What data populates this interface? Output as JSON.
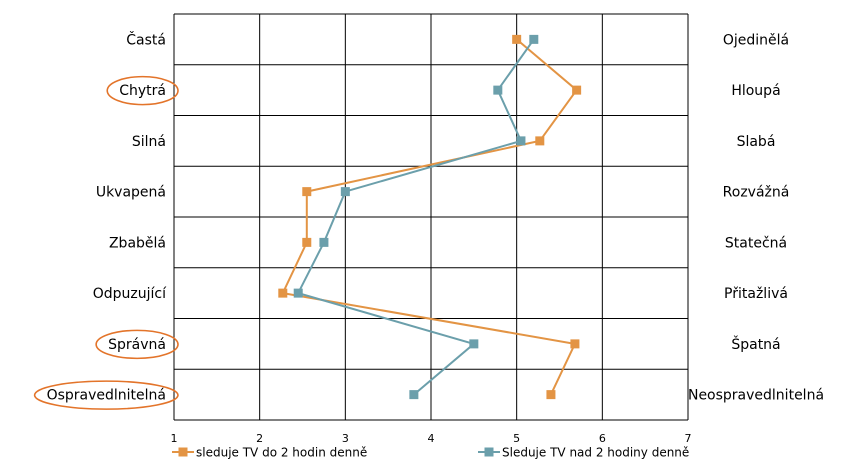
{
  "chart_data": {
    "type": "line",
    "orientation": "profile",
    "title": "",
    "xlim": [
      1,
      7
    ],
    "x_ticks": [
      "1",
      "2",
      "3",
      "4",
      "5",
      "6",
      "7"
    ],
    "grid": true,
    "legend_position": "bottom",
    "left_labels": [
      "Častá",
      "Chytrá",
      "Silná",
      "Ukvapená",
      "Zbabělá",
      "Odpuzující",
      "Správná",
      "Ospravedlnitelná"
    ],
    "right_labels": [
      "Ojedinělá",
      "Hloupá",
      "Slabá",
      "Rozvážná",
      "Statečná",
      "Přitažlivá",
      "Špatná",
      "Neospravedlnitelná"
    ],
    "highlighted_left_labels": [
      "Chytrá",
      "Správná",
      "Ospravedlnitelná"
    ],
    "series": [
      {
        "name": "sleduje TV do 2 hodin denně",
        "color": "#E39444",
        "values": [
          5.0,
          5.7,
          5.27,
          2.55,
          2.55,
          2.27,
          5.68,
          5.4
        ]
      },
      {
        "name": "Sleduje TV nad 2 hodiny denně",
        "color": "#6B9FAB",
        "values": [
          5.2,
          4.78,
          5.05,
          3.0,
          2.75,
          2.45,
          4.5,
          3.8
        ]
      }
    ]
  }
}
